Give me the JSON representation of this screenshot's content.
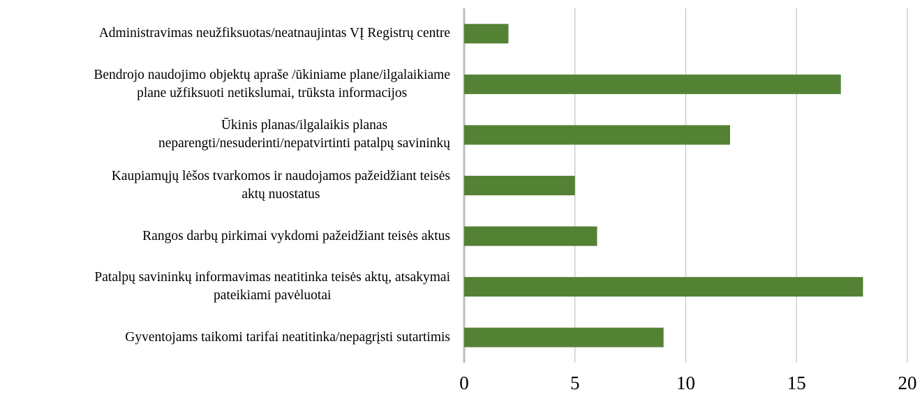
{
  "chart_data": {
    "type": "barh",
    "categories": [
      "Administravimas neužfiksuotas/neatnaujintas VĮ Registrų centre",
      "Bendrojo naudojimo objektų apraše /ūkiniame plane/ilgalaikiame\nplane užfiksuoti netikslumai, trūksta informacijos",
      "Ūkinis planas/ilgalaikis planas\nneparengti/nesuderinti/nepatvirtinti patalpų savininkų",
      "Kaupiamųjų lėšos tvarkomos ir naudojamos pažeidžiant teisės\naktų nuostatus",
      "Rangos darbų pirkimai vykdomi pažeidžiant teisės aktus",
      "Patalpų savininkų informavimas neatitinka teisės aktų, atsakymai\npateikiami pavėluotai",
      "Gyventojams taikomi tarifai neatitinka/nepagrįsti sutartimis"
    ],
    "values": [
      2,
      17,
      12,
      5,
      6,
      18,
      9
    ],
    "color": "#548235",
    "xlim": [
      0,
      20
    ],
    "xticks": [
      0,
      5,
      10,
      15,
      20
    ],
    "grid": true
  }
}
